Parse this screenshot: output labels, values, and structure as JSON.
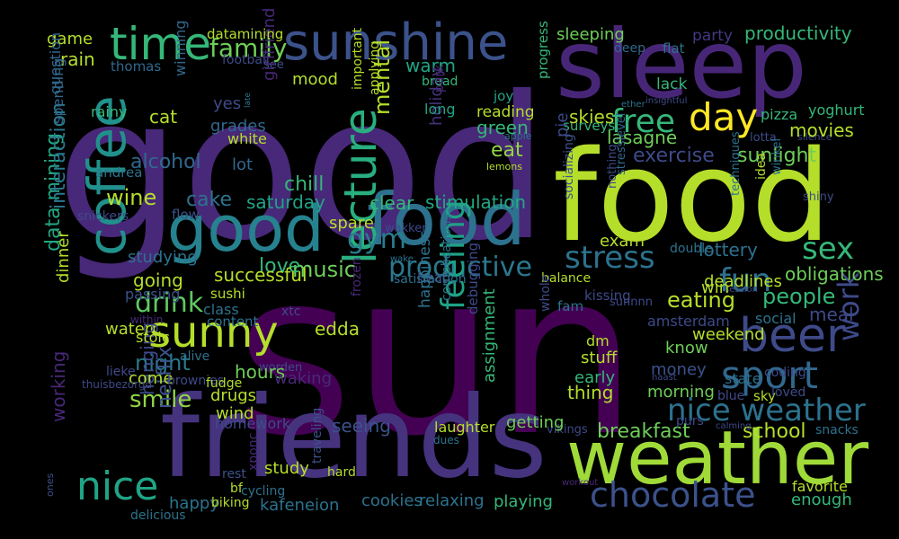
{
  "cloud": {
    "palette": "viridis",
    "background": "#000000",
    "words": [
      {
        "text": "good",
        "color": "#482878"
      },
      {
        "text": "sun",
        "color": "#440154"
      },
      {
        "text": "sleep",
        "color": "#482677"
      },
      {
        "text": "food",
        "color": "#b5de2b"
      },
      {
        "text": "friends",
        "color": "#46337e"
      },
      {
        "text": "weather",
        "color": "#a0da39"
      },
      {
        "text": "good",
        "color": "#26828e"
      },
      {
        "text": "food",
        "color": "#2c728e"
      },
      {
        "text": "sunshine",
        "color": "#3b528b"
      },
      {
        "text": "coffee",
        "color": "#21918c"
      },
      {
        "text": "time",
        "color": "#35b779"
      },
      {
        "text": "beer",
        "color": "#3e4a89"
      },
      {
        "text": "sport",
        "color": "#31688e"
      },
      {
        "text": "sunny",
        "color": "#b5de2b"
      },
      {
        "text": "nice",
        "color": "#20a486"
      },
      {
        "text": "lecture",
        "color": "#29af7f"
      },
      {
        "text": "chocolate",
        "color": "#3b528b"
      },
      {
        "text": "day",
        "color": "#fde725"
      },
      {
        "text": "free",
        "color": "#35b779"
      },
      {
        "text": "stress",
        "color": "#2c728e"
      },
      {
        "text": "productive",
        "color": "#2a788e"
      },
      {
        "text": "sex",
        "color": "#35b779"
      },
      {
        "text": "fun",
        "color": "#2c728e"
      },
      {
        "text": "gym",
        "color": "#287d8e"
      },
      {
        "text": "nice weather",
        "color": "#2c728e"
      },
      {
        "text": "family",
        "color": "#6ece58"
      },
      {
        "text": "music",
        "color": "#6ece58"
      },
      {
        "text": "love",
        "color": "#35b779"
      },
      {
        "text": "drink",
        "color": "#5ec962"
      },
      {
        "text": "smile",
        "color": "#90d743"
      },
      {
        "text": "night",
        "color": "#2a788e"
      },
      {
        "text": "feeling",
        "color": "#1fa188"
      },
      {
        "text": "eating",
        "color": "#b5de2b"
      },
      {
        "text": "people",
        "color": "#35b779"
      },
      {
        "text": "work",
        "color": "#3e4a89"
      },
      {
        "text": "data mining",
        "color": "#22a884"
      },
      {
        "text": "interaction",
        "color": "#2a788e"
      },
      {
        "text": "working",
        "color": "#482878"
      },
      {
        "text": "netflix",
        "color": "#3b528b"
      },
      {
        "text": "hanging",
        "color": "#3e4a89"
      },
      {
        "text": "cake",
        "color": "#2c728e"
      },
      {
        "text": "chill",
        "color": "#35b779"
      },
      {
        "text": "saturday",
        "color": "#20a486"
      },
      {
        "text": "clear",
        "color": "#35b779"
      },
      {
        "text": "stimulation",
        "color": "#22a884"
      },
      {
        "text": "wine",
        "color": "#b5de2b"
      },
      {
        "text": "rain",
        "color": "#b5de2b"
      },
      {
        "text": "game",
        "color": "#b5de2b"
      },
      {
        "text": "thomas",
        "color": "#31688e"
      },
      {
        "text": "football",
        "color": "#3e4a89"
      },
      {
        "text": "see",
        "color": "#3b528b"
      },
      {
        "text": "mood",
        "color": "#b5de2b"
      },
      {
        "text": "warm",
        "color": "#20a486"
      },
      {
        "text": "winning",
        "color": "#31688e"
      },
      {
        "text": "yes",
        "color": "#3e4a89"
      },
      {
        "text": "grades",
        "color": "#31688e"
      },
      {
        "text": "white",
        "color": "#b5de2b"
      },
      {
        "text": "cat",
        "color": "#b5de2b"
      },
      {
        "text": "alcohol",
        "color": "#31688e"
      },
      {
        "text": "lot",
        "color": "#31688e"
      },
      {
        "text": "girlfriend",
        "color": "#482878"
      },
      {
        "text": "holiday",
        "color": "#46337e"
      },
      {
        "text": "mental",
        "color": "#b5de2b"
      },
      {
        "text": "important",
        "color": "#b5de2b"
      },
      {
        "text": "applying",
        "color": "#b5de2b"
      },
      {
        "text": "bread",
        "color": "#35b779"
      },
      {
        "text": "park",
        "color": "#482878"
      },
      {
        "text": "long",
        "color": "#20a486"
      },
      {
        "text": "joy",
        "color": "#20a486"
      },
      {
        "text": "reading",
        "color": "#b5de2b"
      },
      {
        "text": "green",
        "color": "#35b779"
      },
      {
        "text": "eat",
        "color": "#90d743"
      },
      {
        "text": "lemons",
        "color": "#b5de2b"
      },
      {
        "text": "apple",
        "color": "#2c728e"
      },
      {
        "text": "progress",
        "color": "#35b779"
      },
      {
        "text": "surveys",
        "color": "#35b779"
      },
      {
        "text": "skies",
        "color": "#b5de2b"
      },
      {
        "text": "pie",
        "color": "#3e4a89"
      },
      {
        "text": "sleeping",
        "color": "#6ece58"
      },
      {
        "text": "deep",
        "color": "#31688e"
      },
      {
        "text": "flat",
        "color": "#2c728e"
      },
      {
        "text": "party",
        "color": "#443983"
      },
      {
        "text": "productivity",
        "color": "#35b779"
      },
      {
        "text": "lack",
        "color": "#35b779"
      },
      {
        "text": "insightful",
        "color": "#3e4a89"
      },
      {
        "text": "ether",
        "color": "#2c728e"
      },
      {
        "text": "pizza",
        "color": "#35b779"
      },
      {
        "text": "yoghurt",
        "color": "#35b779"
      },
      {
        "text": "lotta",
        "color": "#3e4a89"
      },
      {
        "text": "silence",
        "color": "#3e4a89"
      },
      {
        "text": "lasagne",
        "color": "#6ece58"
      },
      {
        "text": "exercise",
        "color": "#3e4a89"
      },
      {
        "text": "sunlight",
        "color": "#6ece58"
      },
      {
        "text": "movies",
        "color": "#b5de2b"
      },
      {
        "text": "spending",
        "color": "#31688e"
      },
      {
        "text": "question",
        "color": "#31688e"
      },
      {
        "text": "rainy",
        "color": "#35b779"
      },
      {
        "text": "andrea",
        "color": "#2c728e"
      },
      {
        "text": "flow",
        "color": "#3b528b"
      },
      {
        "text": "snickers",
        "color": "#3e4a89"
      },
      {
        "text": "wakker",
        "color": "#3e4a89"
      },
      {
        "text": "spare",
        "color": "#b5de2b"
      },
      {
        "text": "socializing",
        "color": "#3b528b"
      },
      {
        "text": "nothing",
        "color": "#3e4a89"
      },
      {
        "text": "stresslevel",
        "color": "#31688e"
      },
      {
        "text": "winkel",
        "color": "#2c728e"
      },
      {
        "text": "shiny",
        "color": "#3e4a89"
      },
      {
        "text": "techniques",
        "color": "#2c728e"
      },
      {
        "text": "idea",
        "color": "#b5de2b"
      },
      {
        "text": "studying",
        "color": "#2c728e"
      },
      {
        "text": "dinner",
        "color": "#b5de2b"
      },
      {
        "text": "going",
        "color": "#b5de2b"
      },
      {
        "text": "successful",
        "color": "#b5de2b"
      },
      {
        "text": "passing",
        "color": "#3b528b"
      },
      {
        "text": "sushi",
        "color": "#b5de2b"
      },
      {
        "text": "head",
        "color": "#3e4a89"
      },
      {
        "text": "wake",
        "color": "#2c728e"
      },
      {
        "text": "exam",
        "color": "#b5de2b"
      },
      {
        "text": "lottery",
        "color": "#2c728e"
      },
      {
        "text": "double",
        "color": "#2c728e"
      },
      {
        "text": "deadlines",
        "color": "#b5de2b"
      },
      {
        "text": "session",
        "color": "#3e4a89"
      },
      {
        "text": "obligations",
        "color": "#6ece58"
      },
      {
        "text": "satisfaction",
        "color": "#2c728e"
      },
      {
        "text": "balance",
        "color": "#b5de2b"
      },
      {
        "text": "sunnnn",
        "color": "#3e4a89"
      },
      {
        "text": "win",
        "color": "#b5de2b"
      },
      {
        "text": "water",
        "color": "#b5de2b"
      },
      {
        "text": "within",
        "color": "#482878"
      },
      {
        "text": "class",
        "color": "#2c728e"
      },
      {
        "text": "content",
        "color": "#2c728e"
      },
      {
        "text": "xtc",
        "color": "#3e4a89"
      },
      {
        "text": "edda",
        "color": "#b5de2b"
      },
      {
        "text": "frozen",
        "color": "#482878"
      },
      {
        "text": "debugging",
        "color": "#3e4a89"
      },
      {
        "text": "happiness",
        "color": "#2c728e"
      },
      {
        "text": "complications",
        "color": "#2c728e"
      },
      {
        "text": "whole",
        "color": "#3e4a89"
      },
      {
        "text": "fam",
        "color": "#2c728e"
      },
      {
        "text": "kissing",
        "color": "#3e4a89"
      },
      {
        "text": "amsterdam",
        "color": "#3e4a89"
      },
      {
        "text": "social",
        "color": "#2c728e"
      },
      {
        "text": "meal",
        "color": "#3e4a89"
      },
      {
        "text": "weekend",
        "color": "#b5de2b"
      },
      {
        "text": "know",
        "color": "#6ece58"
      },
      {
        "text": "dm",
        "color": "#b5de2b"
      },
      {
        "text": "stuff",
        "color": "#b5de2b"
      },
      {
        "text": "early",
        "color": "#35b779"
      },
      {
        "text": "money",
        "color": "#3b528b"
      },
      {
        "text": "state",
        "color": "#2c728e"
      },
      {
        "text": "coding",
        "color": "#3e4a89"
      },
      {
        "text": "naast",
        "color": "#3e4a89"
      },
      {
        "text": "thing",
        "color": "#b5de2b"
      },
      {
        "text": "morning",
        "color": "#6ece58"
      },
      {
        "text": "blue",
        "color": "#3e4a89"
      },
      {
        "text": "sky",
        "color": "#b5de2b"
      },
      {
        "text": "loved",
        "color": "#3e4a89"
      },
      {
        "text": "stoic",
        "color": "#b5de2b"
      },
      {
        "text": "alive",
        "color": "#2c728e"
      },
      {
        "text": "worden",
        "color": "#3e4a89"
      },
      {
        "text": "lieke",
        "color": "#3e4a89"
      },
      {
        "text": "come",
        "color": "#b5de2b"
      },
      {
        "text": "brownies",
        "color": "#3e4a89"
      },
      {
        "text": "fudge",
        "color": "#b5de2b"
      },
      {
        "text": "thuisbezorgd",
        "color": "#3e4a89"
      },
      {
        "text": "hours",
        "color": "#6ece58"
      },
      {
        "text": "waking",
        "color": "#482878"
      },
      {
        "text": "drugs",
        "color": "#b5de2b"
      },
      {
        "text": "wind",
        "color": "#b5de2b"
      },
      {
        "text": "homework",
        "color": "#3e4a89"
      },
      {
        "text": "seeing",
        "color": "#3b528b"
      },
      {
        "text": "assignment",
        "color": "#35b779"
      },
      {
        "text": "dues",
        "color": "#2c728e"
      },
      {
        "text": "breakfast",
        "color": "#6ece58"
      },
      {
        "text": "school",
        "color": "#b5de2b"
      },
      {
        "text": "vikings",
        "color": "#3e4a89"
      },
      {
        "text": "purs",
        "color": "#3e4a89"
      },
      {
        "text": "calming",
        "color": "#3e4a89"
      },
      {
        "text": "snacks",
        "color": "#2c728e"
      },
      {
        "text": "laughter",
        "color": "#b5de2b"
      },
      {
        "text": "getting",
        "color": "#6ece58"
      },
      {
        "text": "traveling",
        "color": "#3b528b"
      },
      {
        "text": "hard",
        "color": "#b5de2b"
      },
      {
        "text": "study",
        "color": "#b5de2b"
      },
      {
        "text": "rest",
        "color": "#3b528b"
      },
      {
        "text": "xponc",
        "color": "#482878"
      },
      {
        "text": "bf",
        "color": "#b5de2b"
      },
      {
        "text": "cycling",
        "color": "#2c728e"
      },
      {
        "text": "happy",
        "color": "#2c728e"
      },
      {
        "text": "biking",
        "color": "#b5de2b"
      },
      {
        "text": "kafeneion",
        "color": "#2c728e"
      },
      {
        "text": "cookies",
        "color": "#2c728e"
      },
      {
        "text": "relaxing",
        "color": "#2c728e"
      },
      {
        "text": "playing",
        "color": "#35b779"
      },
      {
        "text": "workout",
        "color": "#482878"
      },
      {
        "text": "enough",
        "color": "#35b779"
      },
      {
        "text": "favorite",
        "color": "#b5de2b"
      },
      {
        "text": "delicious",
        "color": "#2c728e"
      },
      {
        "text": "ones",
        "color": "#3b528b"
      },
      {
        "text": "late",
        "color": "#2c728e"
      },
      {
        "text": "datamining",
        "color": "#b5de2b"
      }
    ]
  }
}
